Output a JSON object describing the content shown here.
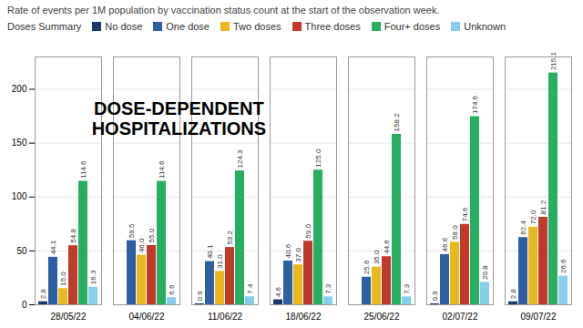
{
  "chart_data": {
    "type": "bar",
    "title": "DOSE-DEPENDENT\nHOSPITALIZATIONS",
    "subtitle": "Rate of events per 1M population by vaccination status count at the start of the observation week.",
    "legend_title": "Doses Summary",
    "categories": [
      "28/05/22",
      "04/06/22",
      "11/06/22",
      "18/06/22",
      "25/06/22",
      "02/07/22",
      "09/07/22"
    ],
    "series": [
      {
        "name": "No dose",
        "color": "#1a3a6b",
        "values": [
          2.8,
          0.0,
          0.9,
          4.6,
          0.0,
          0.9,
          2.8
        ],
        "value_labels": [
          "2.8",
          null,
          "0.9",
          "4.6",
          null,
          "0.9",
          "2.8"
        ]
      },
      {
        "name": "One dose",
        "color": "#2e5fa3",
        "values": [
          44.1,
          59.5,
          40.1,
          40.6,
          25.6,
          46.6,
          62.4
        ],
        "value_labels": [
          "44.1",
          "59.5",
          "40.1",
          "40.6",
          "25.6",
          "46.6",
          "62.4"
        ]
      },
      {
        "name": "Two doses",
        "color": "#e8b820",
        "values": [
          15.0,
          46.0,
          31.0,
          37.0,
          35.0,
          58.0,
          72.0
        ],
        "value_labels": [
          "15.0",
          "46.0",
          "31.0",
          "37.0",
          "35.0",
          "58.0",
          "72.0"
        ]
      },
      {
        "name": "Three doses",
        "color": "#c0392b",
        "values": [
          54.8,
          55.0,
          53.2,
          59.0,
          44.6,
          74.6,
          81.2
        ],
        "value_labels": [
          "54.8",
          "55.0",
          "53.2",
          "59.0",
          "44.6",
          "74.6",
          "81.2"
        ]
      },
      {
        "name": "Four+ doses",
        "color": "#27ae60",
        "values": [
          114.6,
          114.6,
          124.3,
          125.0,
          158.2,
          174.6,
          215.1
        ],
        "value_labels": [
          "114.6",
          "114.6",
          "124.3",
          "125.0",
          "158.2",
          "174.6",
          "215.1"
        ]
      },
      {
        "name": "Unknown",
        "color": "#87ceeb",
        "values": [
          16.3,
          6.6,
          7.4,
          7.3,
          7.3,
          20.8,
          26.6
        ],
        "value_labels": [
          "16.3",
          "6.6",
          "7.4",
          "7.3",
          "7.3",
          "20.8",
          "26.6"
        ]
      }
    ],
    "ylim": [
      0,
      230
    ],
    "yticks": [
      0,
      50,
      100,
      150,
      200
    ],
    "grid": true,
    "legend": "top",
    "data_labels": true
  }
}
